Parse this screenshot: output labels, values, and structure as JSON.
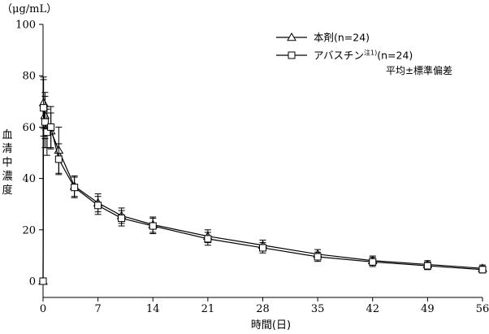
{
  "chart_data": {
    "type": "line",
    "unit_label": "（μg/mL）",
    "xlabel": "時間(日)",
    "ylabel": "血清中濃度",
    "xlim": [
      0,
      56
    ],
    "ylim": [
      0,
      100
    ],
    "xticks": [
      0,
      7,
      14,
      21,
      28,
      35,
      42,
      49,
      56
    ],
    "yticks": [
      0,
      20,
      40,
      60,
      80,
      100
    ],
    "grid": false,
    "legend_position": "top-right",
    "note": "平均±標準偏差",
    "series": [
      {
        "name": "本剤(n=24)",
        "marker": "triangle",
        "x": [
          0,
          0.0625,
          0.25,
          0.5,
          1,
          2,
          4,
          7,
          10,
          14,
          21,
          28,
          35,
          42,
          49,
          56
        ],
        "y": [
          0,
          69.5,
          64.5,
          60,
          58.5,
          51,
          37,
          30.5,
          25.5,
          22,
          17.5,
          14,
          10.5,
          8,
          6.5,
          5
        ],
        "err": [
          0,
          10,
          9,
          8,
          7,
          9,
          4,
          3.5,
          3,
          3,
          2.5,
          2,
          1.8,
          1.8,
          1.5,
          1.3
        ]
      },
      {
        "name": "アバスチン",
        "name_sup": "注1)",
        "name_suffix": "(n=24)",
        "marker": "square",
        "x": [
          0,
          0.0625,
          0.25,
          0.5,
          1,
          2,
          4,
          7,
          10,
          14,
          21,
          28,
          35,
          42,
          49,
          56
        ],
        "y": [
          0,
          67.5,
          62,
          58,
          60,
          47.5,
          36.5,
          29.5,
          24.5,
          21.5,
          16.5,
          13,
          9.5,
          7.5,
          6,
          4.5
        ],
        "err": [
          0,
          11,
          10,
          9,
          8,
          6,
          4,
          3.5,
          3,
          3,
          2.5,
          2,
          1.8,
          1.8,
          1.5,
          1.3
        ]
      }
    ]
  }
}
